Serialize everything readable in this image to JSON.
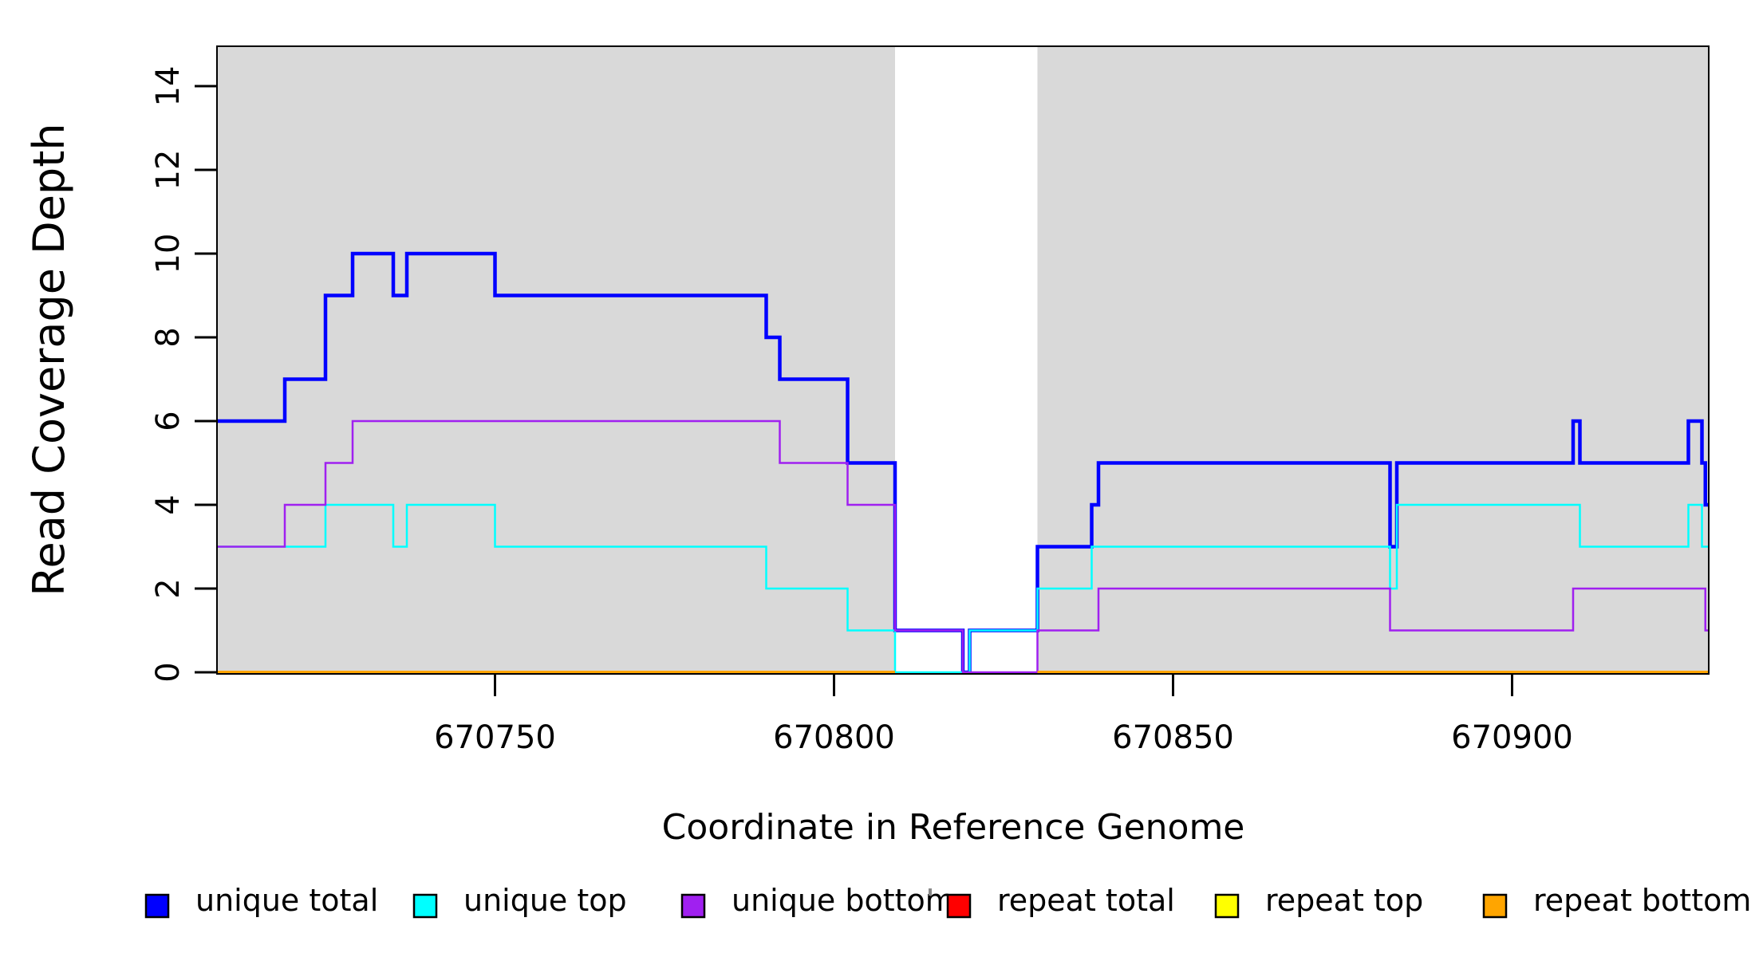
{
  "chart_data": {
    "type": "line",
    "subtype": "step-coverage-plot",
    "title": "",
    "xlabel": "Coordinate in Reference Genome",
    "ylabel": "Read Coverage Depth",
    "xlim": [
      670709,
      670929
    ],
    "ylim": [
      0,
      15
    ],
    "x_ticks": [
      670750,
      670800,
      670850,
      670900
    ],
    "y_ticks": [
      0,
      2,
      4,
      6,
      8,
      10,
      12,
      14
    ],
    "grid": false,
    "legend_position": "bottom",
    "plot_background": "#FFFFFF",
    "background_regions": [
      {
        "name": "repeat-region-left",
        "x0": 670709,
        "x1": 670809,
        "color": "#D9D9D9"
      },
      {
        "name": "coverage-gap-region",
        "x0": 670809,
        "x1": 670830,
        "color": "#FFFFFF"
      },
      {
        "name": "repeat-region-right",
        "x0": 670830,
        "x1": 670929,
        "color": "#D9D9D9"
      }
    ],
    "series": [
      {
        "name": "unique total",
        "color": "#0000FF",
        "line_width": 4.5,
        "segments": [
          [
            [
              670709,
              6
            ],
            [
              670719,
              7
            ],
            [
              670725,
              9
            ],
            [
              670729,
              10
            ],
            [
              670735,
              9
            ],
            [
              670737,
              10
            ],
            [
              670750,
              9
            ],
            [
              670790,
              8
            ],
            [
              670792,
              7
            ],
            [
              670802,
              5
            ],
            [
              670809,
              1
            ],
            [
              670819,
              0
            ],
            [
              670820,
              1
            ],
            [
              670830,
              3
            ],
            [
              670838,
              4
            ],
            [
              670839,
              5
            ],
            [
              670882,
              3
            ],
            [
              670883,
              5
            ],
            [
              670909,
              6
            ],
            [
              670910,
              5
            ],
            [
              670926,
              6
            ],
            [
              670928,
              5
            ],
            [
              670928.5,
              4
            ],
            [
              670929,
              4
            ]
          ]
        ]
      },
      {
        "name": "unique top",
        "color": "#00FFFF",
        "line_width": 2.5,
        "segments": [
          [
            [
              670709,
              3
            ],
            [
              670725,
              4
            ],
            [
              670735,
              3
            ],
            [
              670737,
              4
            ],
            [
              670750,
              3
            ],
            [
              670790,
              2
            ],
            [
              670802,
              1
            ],
            [
              670809,
              0
            ],
            [
              670820,
              1
            ],
            [
              670830,
              2
            ],
            [
              670838,
              3
            ],
            [
              670882,
              2
            ],
            [
              670883,
              4
            ],
            [
              670910,
              3
            ],
            [
              670926,
              4
            ],
            [
              670928,
              3
            ],
            [
              670929,
              3
            ]
          ]
        ]
      },
      {
        "name": "unique bottom",
        "color": "#A020F0",
        "line_width": 2.5,
        "segments": [
          [
            [
              670709,
              3
            ],
            [
              670719,
              4
            ],
            [
              670725,
              5
            ],
            [
              670729,
              6
            ],
            [
              670792,
              5
            ],
            [
              670802,
              4
            ],
            [
              670809,
              1
            ],
            [
              670819,
              0
            ],
            [
              670830,
              1
            ],
            [
              670839,
              2
            ],
            [
              670882,
              1
            ],
            [
              670909,
              2
            ],
            [
              670928.5,
              1
            ],
            [
              670929,
              1
            ]
          ]
        ]
      },
      {
        "name": "repeat total",
        "color": "#FF0000",
        "line_width": 2.5,
        "segments": [
          [
            [
              670709,
              0
            ],
            [
              670809,
              0
            ]
          ],
          [
            [
              670830,
              0
            ],
            [
              670929,
              0
            ]
          ]
        ]
      },
      {
        "name": "repeat top",
        "color": "#FFFF00",
        "line_width": 2.5,
        "segments": [
          [
            [
              670709,
              0
            ],
            [
              670809,
              0
            ]
          ],
          [
            [
              670830,
              0
            ],
            [
              670929,
              0
            ]
          ]
        ]
      },
      {
        "name": "repeat bottom",
        "color": "#FFA500",
        "line_width": 4,
        "segments": [
          [
            [
              670709,
              0
            ],
            [
              670809,
              0
            ]
          ],
          [
            [
              670830,
              0
            ],
            [
              670929,
              0
            ]
          ]
        ]
      }
    ]
  }
}
